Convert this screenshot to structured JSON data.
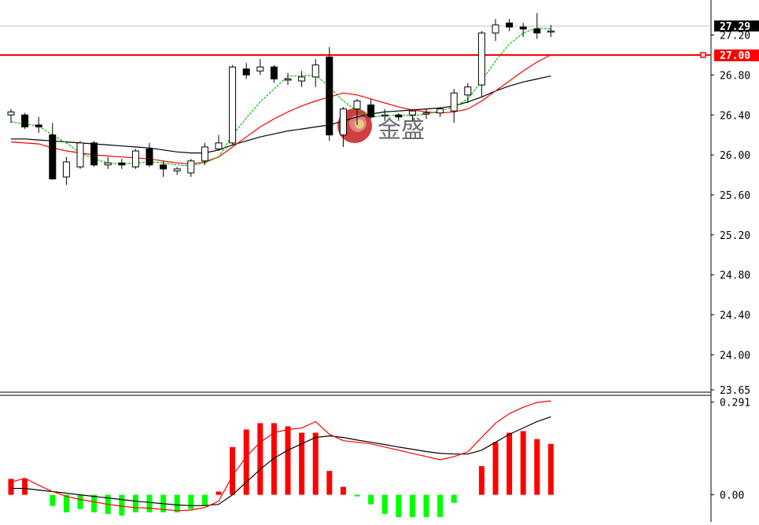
{
  "chart_data": [
    {
      "type": "candlestick",
      "title": "",
      "colors": {
        "up": "#000000",
        "down": "#000000",
        "up_fill": "#ffffff",
        "down_fill": "#000000",
        "ma_fast": "#00c000",
        "ma_mid": "#ff0000",
        "ma_slow": "#000000",
        "hline": "#ff0000",
        "current_price_line": "#c0c0c0"
      },
      "ylim": [
        23.65,
        27.55
      ],
      "y_ticks": [
        27.2,
        26.8,
        26.4,
        26.0,
        25.6,
        25.2,
        24.8,
        24.4,
        24.0,
        23.65
      ],
      "y_tick_labels": [
        "27.20",
        "26.80",
        "26.40",
        "26.00",
        "25.60",
        "25.20",
        "24.80",
        "24.40",
        "24.00",
        "23.65"
      ],
      "horizontal_line": {
        "value": 27.0,
        "label": "27.00"
      },
      "current_price": {
        "value": 27.29,
        "label": "27.29"
      },
      "candles": [
        {
          "o": 26.4,
          "h": 26.46,
          "l": 26.32,
          "c": 26.43
        },
        {
          "o": 26.4,
          "h": 26.42,
          "l": 26.26,
          "c": 26.28
        },
        {
          "o": 26.3,
          "h": 26.38,
          "l": 26.22,
          "c": 26.28
        },
        {
          "o": 26.2,
          "h": 26.32,
          "l": 25.75,
          "c": 25.76
        },
        {
          "o": 25.78,
          "h": 25.98,
          "l": 25.7,
          "c": 25.93
        },
        {
          "o": 25.88,
          "h": 26.14,
          "l": 25.86,
          "c": 26.12
        },
        {
          "o": 26.12,
          "h": 26.14,
          "l": 25.88,
          "c": 25.9
        },
        {
          "o": 25.9,
          "h": 25.98,
          "l": 25.86,
          "c": 25.92
        },
        {
          "o": 25.92,
          "h": 25.96,
          "l": 25.86,
          "c": 25.9
        },
        {
          "o": 25.88,
          "h": 26.06,
          "l": 25.86,
          "c": 26.04
        },
        {
          "o": 26.06,
          "h": 26.12,
          "l": 25.88,
          "c": 25.9
        },
        {
          "o": 25.9,
          "h": 25.94,
          "l": 25.78,
          "c": 25.86
        },
        {
          "o": 25.84,
          "h": 25.88,
          "l": 25.8,
          "c": 25.86
        },
        {
          "o": 25.82,
          "h": 25.96,
          "l": 25.78,
          "c": 25.94
        },
        {
          "o": 25.94,
          "h": 26.12,
          "l": 25.9,
          "c": 26.08
        },
        {
          "o": 26.06,
          "h": 26.2,
          "l": 26.04,
          "c": 26.12
        },
        {
          "o": 26.12,
          "h": 26.9,
          "l": 26.1,
          "c": 26.88
        },
        {
          "o": 26.86,
          "h": 26.92,
          "l": 26.76,
          "c": 26.8
        },
        {
          "o": 26.84,
          "h": 26.96,
          "l": 26.8,
          "c": 26.88
        },
        {
          "o": 26.88,
          "h": 26.9,
          "l": 26.72,
          "c": 26.76
        },
        {
          "o": 26.76,
          "h": 26.82,
          "l": 26.7,
          "c": 26.76
        },
        {
          "o": 26.74,
          "h": 26.84,
          "l": 26.68,
          "c": 26.78
        },
        {
          "o": 26.78,
          "h": 26.96,
          "l": 26.68,
          "c": 26.9
        },
        {
          "o": 26.98,
          "h": 27.08,
          "l": 26.14,
          "c": 26.2
        },
        {
          "o": 26.2,
          "h": 26.48,
          "l": 26.08,
          "c": 26.46
        },
        {
          "o": 26.46,
          "h": 26.56,
          "l": 26.3,
          "c": 26.54
        },
        {
          "o": 26.5,
          "h": 26.56,
          "l": 26.36,
          "c": 26.38
        },
        {
          "o": 26.4,
          "h": 26.46,
          "l": 26.34,
          "c": 26.4
        },
        {
          "o": 26.4,
          "h": 26.42,
          "l": 26.34,
          "c": 26.38
        },
        {
          "o": 26.4,
          "h": 26.46,
          "l": 26.34,
          "c": 26.44
        },
        {
          "o": 26.42,
          "h": 26.46,
          "l": 26.36,
          "c": 26.42
        },
        {
          "o": 26.42,
          "h": 26.48,
          "l": 26.38,
          "c": 26.46
        },
        {
          "o": 26.44,
          "h": 26.66,
          "l": 26.32,
          "c": 26.62
        },
        {
          "o": 26.6,
          "h": 26.72,
          "l": 26.52,
          "c": 26.68
        },
        {
          "o": 26.7,
          "h": 27.24,
          "l": 26.58,
          "c": 27.22
        },
        {
          "o": 27.22,
          "h": 27.36,
          "l": 27.14,
          "c": 27.3
        },
        {
          "o": 27.32,
          "h": 27.36,
          "l": 27.24,
          "c": 27.28
        },
        {
          "o": 27.28,
          "h": 27.32,
          "l": 27.18,
          "c": 27.26
        },
        {
          "o": 27.26,
          "h": 27.42,
          "l": 27.16,
          "c": 27.22
        },
        {
          "o": 27.24,
          "h": 27.3,
          "l": 27.18,
          "c": 27.24
        }
      ],
      "ma_fast": [
        26.33,
        26.31,
        26.29,
        26.2,
        26.12,
        26.02,
        25.96,
        25.92,
        25.91,
        25.92,
        25.93,
        25.92,
        25.9,
        25.89,
        25.92,
        25.98,
        26.2,
        26.37,
        26.53,
        26.66,
        26.79,
        26.79,
        26.8,
        26.68,
        26.54,
        26.44,
        26.38,
        26.39,
        26.4,
        26.39,
        26.41,
        26.44,
        26.48,
        26.56,
        26.74,
        26.94,
        27.11,
        27.22,
        27.27,
        27.26
      ],
      "ma_mid": [
        26.13,
        26.12,
        26.11,
        26.07,
        26.04,
        26.02,
        26.0,
        25.99,
        25.98,
        25.97,
        25.96,
        25.94,
        25.92,
        25.91,
        25.93,
        25.98,
        26.08,
        26.18,
        26.28,
        26.36,
        26.43,
        26.49,
        26.54,
        26.58,
        26.62,
        26.6,
        26.56,
        26.52,
        26.48,
        26.45,
        26.43,
        26.42,
        26.43,
        26.46,
        26.54,
        26.64,
        26.74,
        26.84,
        26.93,
        27.0
      ],
      "ma_slow": [
        26.16,
        26.16,
        26.15,
        26.14,
        26.13,
        26.12,
        26.11,
        26.1,
        26.09,
        26.08,
        26.07,
        26.05,
        26.03,
        26.02,
        26.02,
        26.05,
        26.1,
        26.14,
        26.18,
        26.21,
        26.24,
        26.26,
        26.28,
        26.3,
        26.34,
        26.38,
        26.41,
        26.43,
        26.44,
        26.45,
        26.46,
        26.47,
        26.49,
        26.53,
        26.58,
        26.64,
        26.69,
        26.73,
        26.76,
        26.79
      ]
    },
    {
      "type": "macd",
      "colors": {
        "positive": "#ff0000",
        "negative": "#00ff00",
        "signal": "#000000",
        "macd_line": "#ff0000",
        "zero_line": "#000000"
      },
      "ylim": [
        -0.085,
        0.305
      ],
      "y_ticks": [
        0.291,
        0.0
      ],
      "y_tick_labels": [
        "0.291",
        "0.00"
      ],
      "histogram": [
        0.05,
        0.05,
        0.0,
        -0.035,
        -0.055,
        -0.045,
        -0.055,
        -0.06,
        -0.065,
        -0.055,
        -0.055,
        -0.055,
        -0.055,
        -0.045,
        -0.035,
        0.01,
        0.15,
        0.205,
        0.225,
        0.225,
        0.215,
        0.195,
        0.195,
        0.075,
        0.025,
        -0.005,
        -0.03,
        -0.06,
        -0.07,
        -0.07,
        -0.07,
        -0.07,
        -0.025,
        0.0,
        0.09,
        0.165,
        0.195,
        0.2,
        0.175,
        0.16
      ],
      "macd_line": [
        0.04,
        0.052,
        0.03,
        0.01,
        -0.005,
        -0.015,
        -0.022,
        -0.03,
        -0.036,
        -0.04,
        -0.042,
        -0.046,
        -0.05,
        -0.048,
        -0.04,
        -0.02,
        0.06,
        0.12,
        0.165,
        0.195,
        0.205,
        0.21,
        0.23,
        0.19,
        0.17,
        0.165,
        0.16,
        0.15,
        0.14,
        0.13,
        0.12,
        0.11,
        0.12,
        0.135,
        0.18,
        0.225,
        0.255,
        0.275,
        0.29,
        0.295
      ],
      "signal_line": [
        0.02,
        0.02,
        0.015,
        0.01,
        0.005,
        0.0,
        -0.005,
        -0.01,
        -0.015,
        -0.02,
        -0.024,
        -0.028,
        -0.032,
        -0.034,
        -0.034,
        -0.03,
        0.0,
        0.04,
        0.08,
        0.115,
        0.14,
        0.16,
        0.18,
        0.185,
        0.18,
        0.172,
        0.165,
        0.158,
        0.15,
        0.143,
        0.136,
        0.13,
        0.128,
        0.128,
        0.14,
        0.165,
        0.19,
        0.21,
        0.23,
        0.245
      ]
    }
  ],
  "watermark": {
    "brand_text": "金盛"
  }
}
